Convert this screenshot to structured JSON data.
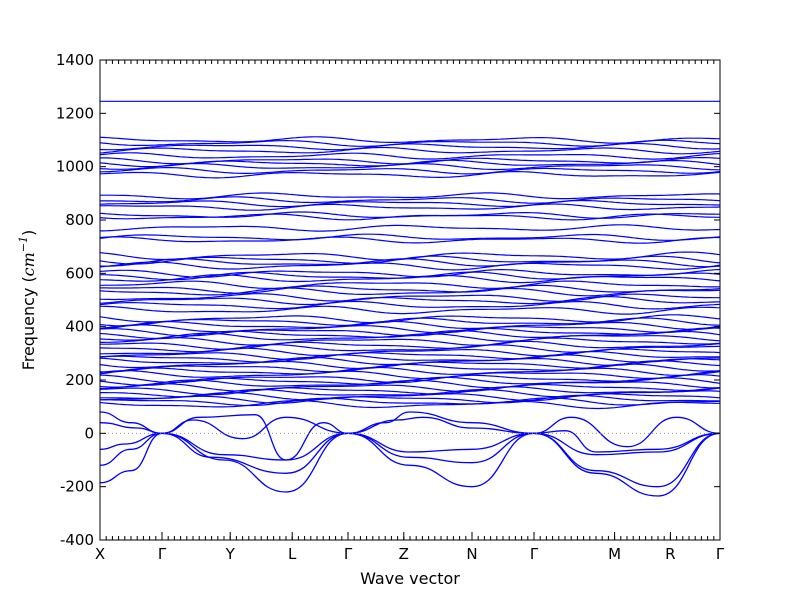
{
  "chart_data": {
    "type": "line",
    "xlabel": "Wave vector",
    "ylabel": "Frequency (cm⁻¹)",
    "ylabel_prefix": "Frequency (",
    "ylabel_unit": "cm",
    "ylabel_exp": "−1",
    "ylabel_suffix": ")",
    "ylim": [
      -400,
      1400
    ],
    "yticks": [
      -400,
      -200,
      0,
      200,
      400,
      600,
      800,
      1000,
      1200,
      1400
    ],
    "x_labels": [
      "X",
      "Γ",
      "Y",
      "L",
      "Γ",
      "Z",
      "N",
      "Γ",
      "M",
      "R",
      "Γ"
    ],
    "segments": 10,
    "line_color": "#0000ff",
    "zero_line": true,
    "flat_bands": [
      1245,
      1100,
      1088,
      1075,
      1060,
      1040,
      1022,
      1012,
      1000,
      985,
      970,
      890,
      875,
      862,
      848,
      818,
      812,
      770,
      735,
      725,
      665,
      650,
      640,
      628,
      600,
      590,
      580,
      558,
      540,
      530,
      510,
      498,
      480,
      462,
      430,
      418,
      405,
      392,
      380,
      370,
      360,
      345,
      330,
      318,
      305,
      292,
      280,
      270,
      258,
      245,
      232,
      220,
      205,
      195,
      185,
      172,
      160,
      150,
      138,
      128,
      118,
      108
    ],
    "acoustic_bands": [
      {
        "name": "",
        "points": [
          [
            0,
            80
          ],
          [
            0.3,
            60
          ],
          [
            0.5,
            40
          ],
          [
            0.7,
            20
          ],
          [
            1,
            0
          ]
        ]
      }
    ]
  }
}
